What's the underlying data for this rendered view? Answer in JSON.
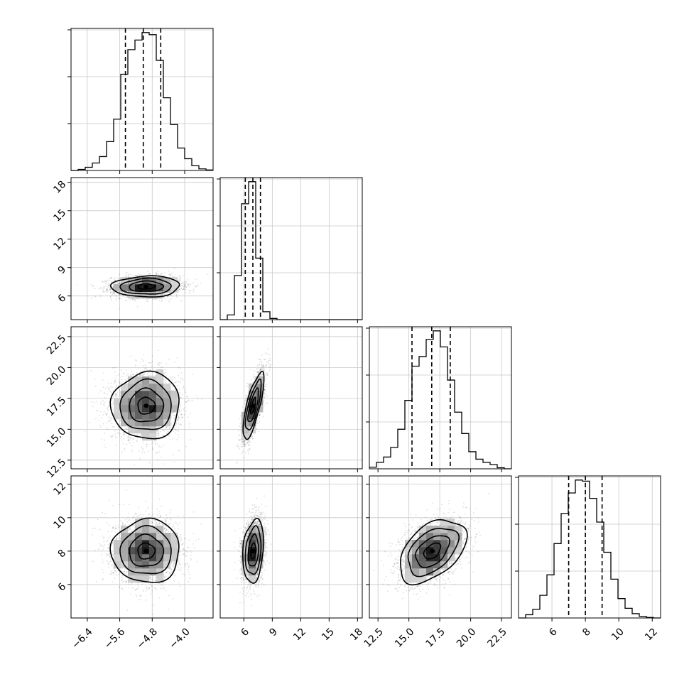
{
  "chart_data": {
    "type": "corner",
    "grid": true,
    "quantile_lines": "dashed",
    "parameters": [
      {
        "range": [
          -6.8,
          -3.3
        ],
        "ticks": [
          -6.4,
          -5.6,
          -4.8,
          -4.0
        ],
        "tick_labels": [
          "−6.4",
          "−5.6",
          "−4.8",
          "−4.0"
        ],
        "quantiles": [
          -5.46,
          -5.02,
          -4.59
        ],
        "hist": {
          "edges": [
            -6.8,
            -6.625,
            -6.45,
            -6.275,
            -6.1,
            -5.925,
            -5.75,
            -5.575,
            -5.4,
            -5.225,
            -5.05,
            -4.875,
            -4.7,
            -4.525,
            -4.35,
            -4.175,
            -4.0,
            -3.825,
            -3.65,
            -3.475,
            -3.3
          ],
          "counts": [
            0,
            10,
            30,
            70,
            130,
            270,
            480,
            900,
            1130,
            1220,
            1290,
            1270,
            1030,
            680,
            430,
            210,
            110,
            45,
            15,
            5
          ]
        }
      },
      {
        "range": [
          3.5,
          18.5
        ],
        "ticks": [
          6,
          9,
          12,
          15,
          18
        ],
        "tick_labels": [
          "6",
          "9",
          "12",
          "15",
          "18"
        ],
        "quantiles": [
          6.15,
          6.95,
          7.75
        ],
        "hist": {
          "edges": [
            3.5,
            4.25,
            5.0,
            5.75,
            6.5,
            7.25,
            8.0,
            8.75,
            9.5,
            10.25,
            11.0,
            11.75,
            12.5,
            13.25,
            14.0,
            14.75,
            15.5,
            16.25,
            17.0,
            17.75,
            18.5
          ],
          "counts": [
            0,
            60,
            560,
            1470,
            1750,
            780,
            100,
            15,
            0,
            0,
            0,
            0,
            0,
            0,
            0,
            0,
            0,
            0,
            0,
            0
          ]
        }
      },
      {
        "range": [
          11.8,
          23.3
        ],
        "ticks": [
          12.5,
          15.0,
          17.5,
          20.0,
          22.5
        ],
        "tick_labels": [
          "12.5",
          "15.0",
          "17.5",
          "20.0",
          "22.5"
        ],
        "quantiles": [
          15.25,
          16.85,
          18.35
        ],
        "hist": {
          "edges": [
            11.8,
            12.375,
            12.95,
            13.525,
            14.1,
            14.675,
            15.25,
            15.825,
            16.4,
            16.975,
            17.55,
            18.125,
            18.7,
            19.275,
            19.85,
            20.425,
            21.0,
            21.575,
            22.15,
            22.725,
            23.3
          ],
          "counts": [
            15,
            60,
            110,
            200,
            370,
            640,
            960,
            1050,
            1210,
            1290,
            1140,
            830,
            530,
            330,
            160,
            90,
            60,
            40,
            10,
            0
          ]
        }
      },
      {
        "range": [
          4.0,
          12.5
        ],
        "ticks": [
          6,
          8,
          10,
          12
        ],
        "tick_labels": [
          "6",
          "8",
          "10",
          "12"
        ],
        "quantiles": [
          7.0,
          8.0,
          9.0
        ],
        "hist": {
          "edges": [
            4.0,
            4.425,
            4.85,
            5.275,
            5.7,
            6.125,
            6.55,
            6.975,
            7.4,
            7.825,
            8.25,
            8.675,
            9.1,
            9.525,
            9.95,
            10.375,
            10.8,
            11.225,
            11.65,
            12.075,
            12.5
          ],
          "counts": [
            0,
            30,
            80,
            210,
            400,
            690,
            970,
            1160,
            1280,
            1270,
            1110,
            890,
            610,
            360,
            180,
            90,
            40,
            15,
            5,
            0
          ]
        }
      }
    ],
    "pairs": [
      {
        "x": 0,
        "y": 1,
        "center": [
          -4.95,
          7.0
        ],
        "sd": [
          0.42,
          0.55
        ],
        "rho": 0.05
      },
      {
        "x": 0,
        "y": 2,
        "center": [
          -4.95,
          16.9
        ],
        "sd": [
          0.42,
          1.35
        ],
        "rho": 0.02
      },
      {
        "x": 1,
        "y": 2,
        "center": [
          7.0,
          16.9
        ],
        "sd": [
          0.55,
          1.35
        ],
        "rho": 0.75
      },
      {
        "x": 0,
        "y": 3,
        "center": [
          -4.95,
          8.0
        ],
        "sd": [
          0.42,
          0.95
        ],
        "rho": 0.0
      },
      {
        "x": 1,
        "y": 3,
        "center": [
          7.0,
          8.0
        ],
        "sd": [
          0.55,
          0.95
        ],
        "rho": 0.22
      },
      {
        "x": 2,
        "y": 3,
        "center": [
          16.9,
          8.0
        ],
        "sd": [
          1.35,
          0.95
        ],
        "rho": 0.45
      }
    ]
  }
}
